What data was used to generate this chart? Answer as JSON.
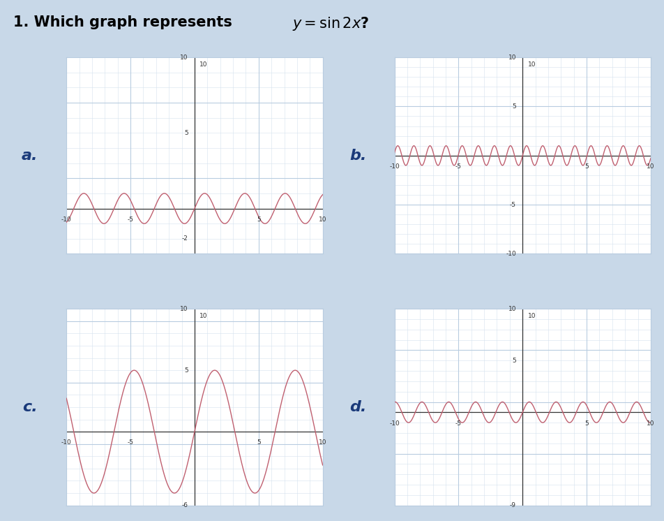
{
  "title": "1. Which graph represents ",
  "title_math": "y = \\sin 2x",
  "title_suffix": "?",
  "fig_bg": "#c8d8e8",
  "panel_bg": "white",
  "graphs": [
    {
      "label": "a.",
      "xlim": [
        -10,
        10
      ],
      "ylim": [
        -3,
        10
      ],
      "xmajor": 5,
      "ymajor": 5,
      "xminor": 1,
      "yminor": 1,
      "xtick_vals": [
        -10,
        -5,
        5,
        10
      ],
      "ytick_vals": [
        -2,
        5,
        10
      ],
      "xtick_labels": [
        "-10",
        "-5",
        "5",
        "10"
      ],
      "ytick_labels": [
        "-2",
        "5",
        "10"
      ],
      "func": "sin",
      "freq": 2,
      "amplitude": 1,
      "line_color": "#c06070",
      "show_ytick_top": true
    },
    {
      "label": "b.",
      "xlim": [
        -10,
        10
      ],
      "ylim": [
        -10,
        10
      ],
      "xmajor": 5,
      "ymajor": 5,
      "xminor": 1,
      "yminor": 1,
      "xtick_vals": [
        -10,
        -5,
        5,
        10
      ],
      "ytick_vals": [
        -10,
        -5,
        5,
        10
      ],
      "xtick_labels": [
        "-10",
        "-5",
        "5",
        "10"
      ],
      "ytick_labels": [
        "-10",
        "-5",
        "5",
        "10"
      ],
      "func": "sin",
      "freq": 5,
      "amplitude": 1,
      "line_color": "#c06070",
      "show_ytick_top": true
    },
    {
      "label": "c.",
      "xlim": [
        -10,
        10
      ],
      "ylim": [
        -6,
        10
      ],
      "xmajor": 5,
      "ymajor": 5,
      "xminor": 1,
      "yminor": 1,
      "xtick_vals": [
        -10,
        -5,
        5,
        10
      ],
      "ytick_vals": [
        -6,
        5,
        10
      ],
      "xtick_labels": [
        "-10",
        "-5",
        "5",
        "10"
      ],
      "ytick_labels": [
        "-6",
        "5",
        "10"
      ],
      "func": "sin",
      "freq": 1,
      "amplitude": 5,
      "line_color": "#c06070",
      "show_ytick_top": true
    },
    {
      "label": "d.",
      "xlim": [
        -10,
        10
      ],
      "ylim": [
        -9,
        10
      ],
      "xmajor": 5,
      "ymajor": 5,
      "xminor": 1,
      "yminor": 1,
      "xtick_vals": [
        -10,
        -5,
        5,
        10
      ],
      "ytick_vals": [
        -9,
        5,
        10
      ],
      "xtick_labels": [
        "-10",
        "-5",
        "5",
        "10"
      ],
      "ytick_labels": [
        "-9",
        "5",
        "10"
      ],
      "func": "sin",
      "freq": 3,
      "amplitude": 1,
      "line_color": "#c06070",
      "show_ytick_top": true
    }
  ],
  "grid_major_color": "#b8cce0",
  "grid_minor_color": "#d4e2ee",
  "axis_color": "#333333",
  "label_color": "#1a3a7a",
  "label_fontsize": 16,
  "tick_fontsize": 6.5,
  "title_fontsize": 15
}
